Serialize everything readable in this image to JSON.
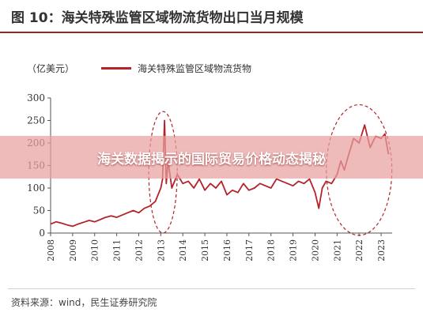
{
  "header": {
    "figure_title": "图 10：海关特殊监管区域物流货物出口当月规模"
  },
  "banner": {
    "text": "海关数据揭示的国际贸易价格动态揭秘"
  },
  "footer": {
    "source": "资料来源：wind，民生证券研究院"
  },
  "colors": {
    "series": "#b5232a",
    "title_rule": "#8a2b2b",
    "banner": "#e8a0a0"
  },
  "chart_data": {
    "type": "line",
    "unit_label": "（亿美元）",
    "ylim": [
      0,
      300
    ],
    "yticks": [
      "0",
      "50",
      "100",
      "150",
      "200",
      "250",
      "300"
    ],
    "xticks": [
      "2008",
      "2009",
      "2010",
      "2011",
      "2012",
      "2013",
      "2014",
      "2015",
      "2016",
      "2017",
      "2018",
      "2019",
      "2020",
      "2021",
      "2022",
      "2023"
    ],
    "legend_position": "top",
    "grid": false,
    "annotations": [
      "dashed ellipse around 2013 spike",
      "dashed ellipse around 2021-2023 peak"
    ],
    "series": [
      {
        "name": "海关特殊监管区域物流货物",
        "x": [
          2008.0,
          2008.25,
          2008.5,
          2008.75,
          2009.0,
          2009.25,
          2009.5,
          2009.75,
          2010.0,
          2010.25,
          2010.5,
          2010.75,
          2011.0,
          2011.25,
          2011.5,
          2011.75,
          2012.0,
          2012.25,
          2012.5,
          2012.75,
          2013.0,
          2013.08,
          2013.17,
          2013.25,
          2013.33,
          2013.5,
          2013.75,
          2014.0,
          2014.25,
          2014.5,
          2014.75,
          2015.0,
          2015.25,
          2015.5,
          2015.75,
          2016.0,
          2016.25,
          2016.5,
          2016.75,
          2017.0,
          2017.25,
          2017.5,
          2017.75,
          2018.0,
          2018.25,
          2018.5,
          2018.75,
          2019.0,
          2019.25,
          2019.5,
          2019.75,
          2020.0,
          2020.17,
          2020.33,
          2020.5,
          2020.75,
          2021.0,
          2021.17,
          2021.33,
          2021.5,
          2021.75,
          2022.0,
          2022.25,
          2022.5,
          2022.75,
          2023.0,
          2023.17,
          2023.33
        ],
        "values": [
          20,
          25,
          22,
          18,
          15,
          20,
          24,
          28,
          25,
          30,
          35,
          38,
          35,
          40,
          45,
          50,
          45,
          55,
          60,
          70,
          100,
          120,
          250,
          110,
          160,
          100,
          130,
          110,
          115,
          100,
          120,
          95,
          110,
          100,
          115,
          85,
          95,
          90,
          110,
          95,
          100,
          110,
          105,
          100,
          120,
          115,
          110,
          105,
          115,
          110,
          120,
          90,
          55,
          100,
          115,
          110,
          130,
          160,
          140,
          170,
          210,
          200,
          240,
          190,
          215,
          210,
          220,
          175
        ]
      }
    ]
  }
}
